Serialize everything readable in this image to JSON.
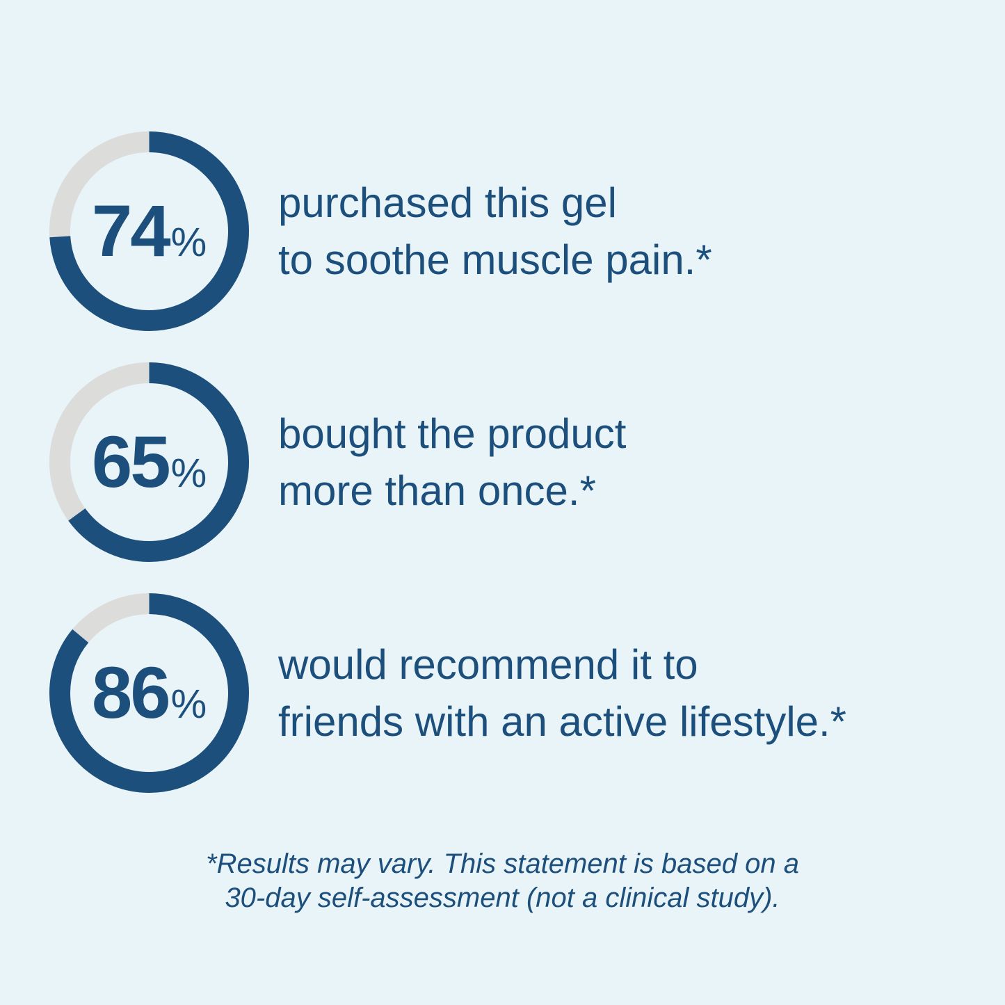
{
  "page": {
    "background": "#e9f4f8"
  },
  "colors": {
    "navy": "#1d4f7c",
    "track": "#dcdcda"
  },
  "chart_data": [
    {
      "type": "donut",
      "value": 74,
      "label": "74",
      "unit": "%",
      "description_lines": [
        "purchased this gel",
        "to soothe muscle pain.*"
      ],
      "arc_color": "#1d4f7c",
      "track_color": "#dcdcda",
      "arc_start": "top",
      "arc_direction": "clockwise"
    },
    {
      "type": "donut",
      "value": 65,
      "label": "65",
      "unit": "%",
      "description_lines": [
        "bought the product",
        "more than once.*"
      ],
      "arc_color": "#1d4f7c",
      "track_color": "#dcdcda",
      "arc_start": "top",
      "arc_direction": "clockwise"
    },
    {
      "type": "donut",
      "value": 86,
      "label": "86",
      "unit": "%",
      "description_lines": [
        "would recommend it to",
        "friends with an active lifestyle.*"
      ],
      "arc_color": "#1d4f7c",
      "track_color": "#dcdcda",
      "arc_start": "top",
      "arc_direction": "clockwise"
    }
  ],
  "footnote": {
    "line1": "*Results may vary. This statement is based on a",
    "line2": "30-day self-assessment (not a clinical study)."
  }
}
